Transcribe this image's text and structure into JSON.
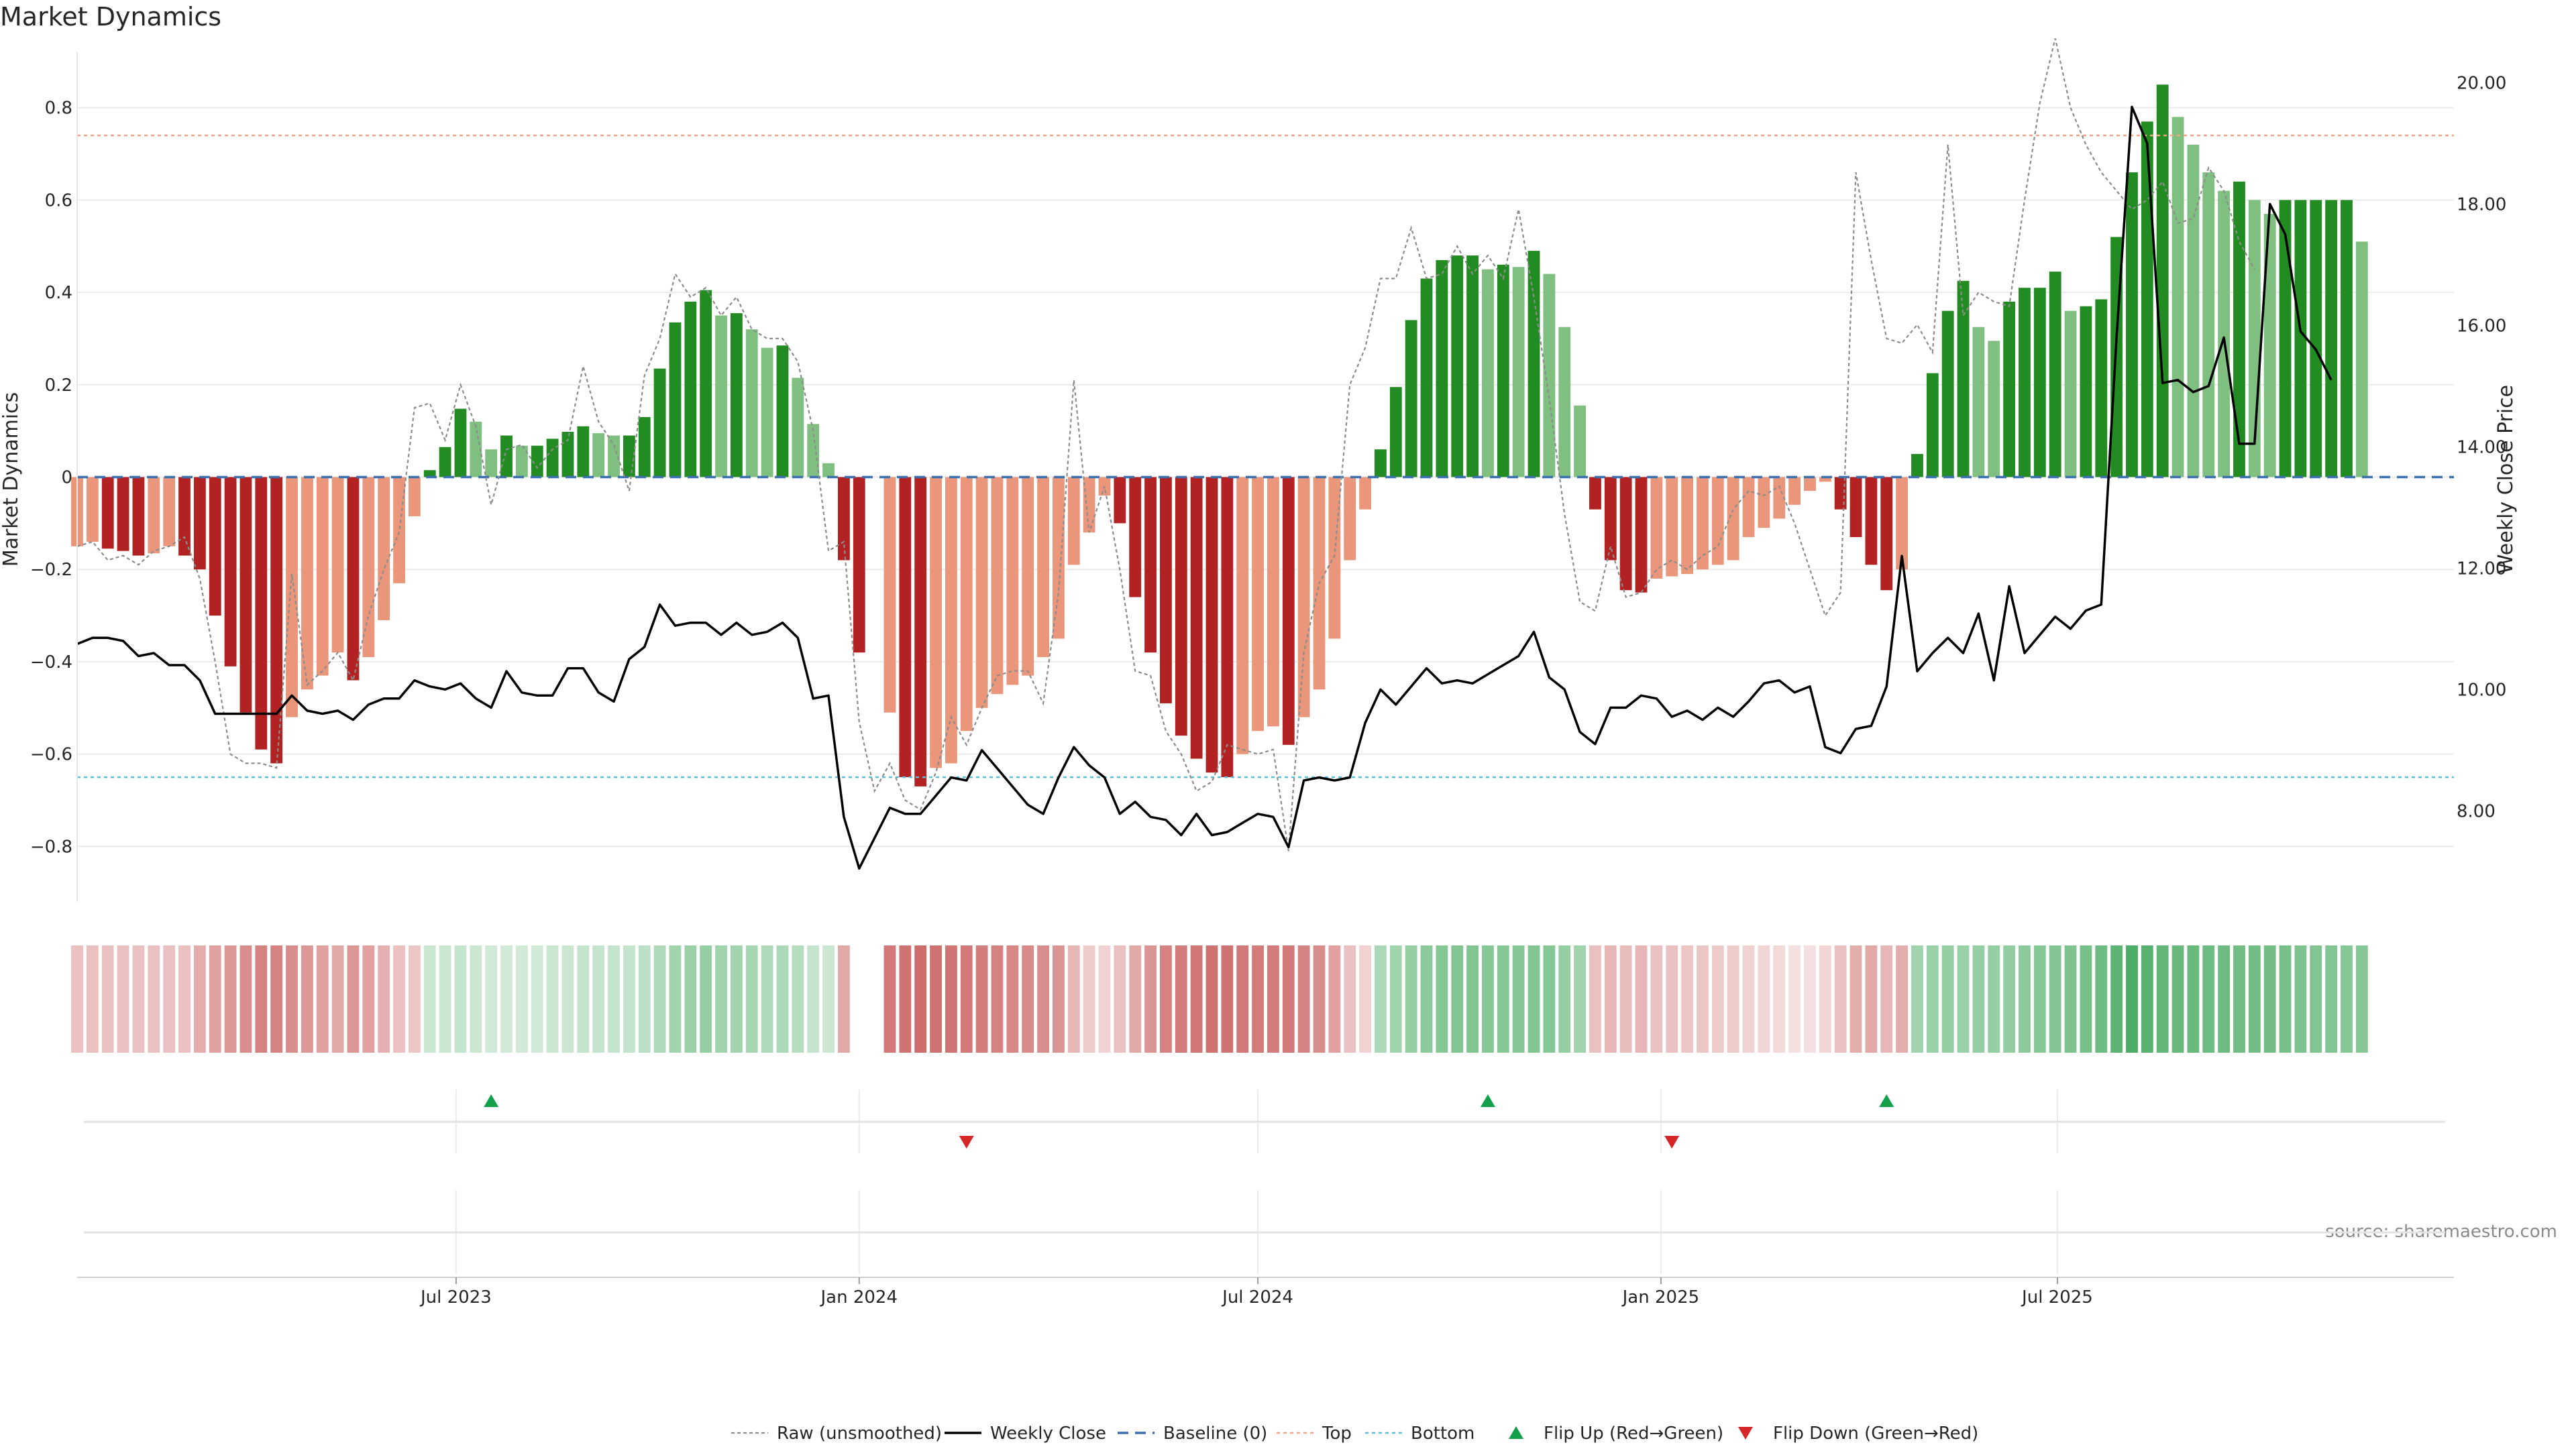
{
  "chart_data": {
    "type": "bar",
    "title": "Market Dynamics",
    "ylabel": "Market Dynamics",
    "y2label": "Weekly Close Price",
    "source": "source: sharemaestro.com",
    "ylim": [
      -0.92,
      0.92
    ],
    "y_ticks": [
      -0.8,
      -0.6,
      -0.4,
      -0.2,
      0,
      0.2,
      0.4,
      0.6,
      0.8
    ],
    "y_tick_labels": [
      "−0.8",
      "−0.6",
      "−0.4",
      "−0.2",
      "0",
      "0.2",
      "0.4",
      "0.6",
      "0.8"
    ],
    "y2lim": [
      6.5,
      20.5
    ],
    "y2_ticks": [
      8,
      10,
      12,
      14,
      16,
      18,
      20
    ],
    "y2_tick_labels": [
      "8.00",
      "10.00",
      "12.00",
      "14.00",
      "16.00",
      "18.00",
      "20.00"
    ],
    "x_start": "2023-01-09",
    "x_end": "2025-12-29",
    "x_ticks": [
      {
        "date": "2023-07-01",
        "label": "Jul 2023"
      },
      {
        "date": "2024-01-01",
        "label": "Jan 2024"
      },
      {
        "date": "2024-07-01",
        "label": "Jul 2024"
      },
      {
        "date": "2025-01-01",
        "label": "Jan 2025"
      },
      {
        "date": "2025-07-01",
        "label": "Jul 2025"
      }
    ],
    "top_level": 0.74,
    "bottom_level": -0.65,
    "baseline": 0,
    "first_week": "2023-01-09",
    "bar_values": [
      -0.15,
      -0.14,
      -0.155,
      -0.16,
      -0.17,
      -0.165,
      -0.15,
      -0.17,
      -0.2,
      -0.3,
      -0.41,
      -0.51,
      -0.59,
      -0.62,
      -0.52,
      -0.46,
      -0.43,
      -0.38,
      -0.44,
      -0.39,
      -0.31,
      -0.23,
      -0.085,
      0.015,
      0.065,
      0.148,
      0.12,
      0.06,
      0.09,
      0.068,
      0.068,
      0.083,
      0.098,
      0.11,
      0.095,
      0.09,
      0.09,
      0.13,
      0.235,
      0.335,
      0.38,
      0.405,
      0.35,
      0.355,
      0.32,
      0.28,
      0.285,
      0.215,
      0.115,
      0.03,
      -0.18,
      -0.38,
      null,
      -0.51,
      -0.65,
      -0.67,
      -0.63,
      -0.62,
      -0.55,
      -0.5,
      -0.47,
      -0.45,
      -0.43,
      -0.39,
      -0.35,
      -0.19,
      -0.12,
      -0.04,
      -0.1,
      -0.26,
      -0.38,
      -0.49,
      -0.56,
      -0.61,
      -0.64,
      -0.65,
      -0.6,
      -0.55,
      -0.54,
      -0.58,
      -0.52,
      -0.46,
      -0.35,
      -0.18,
      -0.07,
      0.06,
      0.195,
      0.34,
      0.43,
      0.47,
      0.48,
      0.48,
      0.45,
      0.46,
      0.455,
      0.49,
      0.44,
      0.325,
      0.155,
      -0.07,
      -0.18,
      -0.245,
      -0.25,
      -0.22,
      -0.215,
      -0.21,
      -0.2,
      -0.19,
      -0.18,
      -0.13,
      -0.11,
      -0.09,
      -0.06,
      -0.03,
      -0.01,
      -0.07,
      -0.13,
      -0.19,
      -0.245,
      -0.2,
      0.05,
      0.225,
      0.36,
      0.425,
      0.325,
      0.295,
      0.38,
      0.41,
      0.41,
      0.445,
      0.36,
      0.37,
      0.385,
      0.52,
      0.66,
      0.77,
      0.85,
      0.78,
      0.72,
      0.66,
      0.62,
      0.64,
      0.6,
      0.57,
      0.6,
      0.6,
      0.6,
      0.6,
      0.6,
      0.51
    ],
    "raw_values": [
      -0.15,
      -0.14,
      -0.18,
      -0.17,
      -0.19,
      -0.16,
      -0.15,
      -0.13,
      -0.22,
      -0.4,
      -0.6,
      -0.62,
      -0.62,
      -0.63,
      -0.21,
      -0.45,
      -0.42,
      -0.38,
      -0.44,
      -0.3,
      -0.2,
      -0.12,
      0.15,
      0.16,
      0.08,
      0.2,
      0.11,
      -0.06,
      0.06,
      0.07,
      0.02,
      0.06,
      0.08,
      0.24,
      0.12,
      0.07,
      -0.03,
      0.22,
      0.3,
      0.44,
      0.39,
      0.41,
      0.35,
      0.39,
      0.32,
      0.3,
      0.3,
      0.25,
      0.1,
      -0.16,
      -0.14,
      -0.53,
      -0.68,
      -0.62,
      -0.7,
      -0.72,
      -0.64,
      -0.52,
      -0.58,
      -0.5,
      -0.43,
      -0.42,
      -0.42,
      -0.49,
      -0.25,
      0.21,
      -0.12,
      -0.02,
      -0.2,
      -0.42,
      -0.43,
      -0.55,
      -0.6,
      -0.68,
      -0.66,
      -0.58,
      -0.59,
      -0.6,
      -0.59,
      -0.81,
      -0.38,
      -0.23,
      -0.17,
      0.2,
      0.28,
      0.43,
      0.43,
      0.54,
      0.43,
      0.44,
      0.5,
      0.44,
      0.48,
      0.43,
      0.58,
      0.39,
      0.17,
      -0.08,
      -0.27,
      -0.29,
      -0.15,
      -0.26,
      -0.25,
      -0.2,
      -0.18,
      -0.2,
      -0.17,
      -0.15,
      -0.07,
      -0.03,
      -0.04,
      -0.02,
      -0.1,
      -0.2,
      -0.3,
      -0.25,
      0.66,
      0.47,
      0.3,
      0.29,
      0.33,
      0.27,
      0.72,
      0.35,
      0.4,
      0.38,
      0.37,
      0.6,
      0.81,
      0.95,
      0.8,
      0.72,
      0.66,
      0.62,
      0.58,
      0.6,
      0.64,
      0.55,
      0.56,
      0.67,
      0.62,
      0.51,
      0.45
    ],
    "price_values": [
      10.75,
      10.85,
      10.85,
      10.8,
      10.55,
      10.6,
      10.4,
      10.4,
      10.15,
      9.6,
      9.6,
      9.6,
      9.6,
      9.6,
      9.9,
      9.65,
      9.6,
      9.65,
      9.5,
      9.75,
      9.85,
      9.85,
      10.15,
      10.05,
      10.0,
      10.1,
      9.85,
      9.7,
      10.3,
      9.95,
      9.9,
      9.9,
      10.35,
      10.35,
      9.95,
      9.8,
      10.5,
      10.7,
      11.4,
      11.05,
      11.1,
      11.1,
      10.9,
      11.1,
      10.9,
      10.95,
      11.1,
      10.85,
      9.85,
      9.9,
      7.9,
      7.05,
      7.55,
      8.05,
      7.95,
      7.95,
      8.25,
      8.55,
      8.5,
      9.0,
      8.7,
      8.4,
      8.1,
      7.95,
      8.55,
      9.05,
      8.75,
      8.55,
      7.95,
      8.15,
      7.9,
      7.85,
      7.6,
      7.95,
      7.6,
      7.65,
      7.8,
      7.95,
      7.9,
      7.4,
      8.5,
      8.55,
      8.5,
      8.55,
      9.45,
      10.0,
      9.75,
      10.05,
      10.35,
      10.1,
      10.15,
      10.1,
      10.25,
      10.4,
      10.55,
      10.95,
      10.2,
      10.0,
      9.3,
      9.1,
      9.7,
      9.7,
      9.9,
      9.85,
      9.55,
      9.65,
      9.5,
      9.7,
      9.55,
      9.8,
      10.1,
      10.15,
      9.95,
      10.05,
      9.05,
      8.95,
      9.35,
      9.4,
      10.05,
      12.2,
      10.3,
      10.6,
      10.85,
      10.6,
      11.25,
      10.15,
      11.7,
      10.6,
      10.9,
      11.2,
      11.0,
      11.3,
      11.4,
      15.8,
      19.6,
      19.0,
      15.05,
      15.1,
      14.9,
      15.0,
      15.8,
      14.05,
      14.05,
      18.0,
      17.5,
      15.9,
      15.6,
      15.1
    ],
    "regime_alphas": [
      0.3,
      0.3,
      0.3,
      0.3,
      0.3,
      0.3,
      0.3,
      0.3,
      0.4,
      0.45,
      0.5,
      0.55,
      0.6,
      0.6,
      0.55,
      0.5,
      0.45,
      0.42,
      0.5,
      0.45,
      0.38,
      0.3,
      0.28,
      0.25,
      0.25,
      0.28,
      0.25,
      0.22,
      0.22,
      0.22,
      0.22,
      0.25,
      0.25,
      0.28,
      0.28,
      0.28,
      0.28,
      0.32,
      0.38,
      0.45,
      0.48,
      0.5,
      0.45,
      0.45,
      0.42,
      0.38,
      0.4,
      0.35,
      0.28,
      0.25,
      0.42,
      null,
      null,
      0.65,
      0.68,
      0.7,
      0.68,
      0.67,
      0.65,
      0.63,
      0.6,
      0.58,
      0.57,
      0.55,
      0.52,
      0.35,
      0.25,
      0.22,
      0.3,
      0.42,
      0.52,
      0.6,
      0.63,
      0.66,
      0.68,
      0.68,
      0.65,
      0.63,
      0.63,
      0.65,
      0.6,
      0.55,
      0.45,
      0.3,
      0.22,
      0.4,
      0.45,
      0.5,
      0.55,
      0.58,
      0.6,
      0.6,
      0.58,
      0.58,
      0.58,
      0.6,
      0.58,
      0.5,
      0.45,
      0.3,
      0.35,
      0.32,
      0.35,
      0.3,
      0.3,
      0.28,
      0.28,
      0.25,
      0.25,
      0.22,
      0.2,
      0.18,
      0.15,
      0.15,
      0.2,
      0.3,
      0.4,
      0.42,
      0.35,
      0.4,
      0.45,
      0.48,
      0.5,
      0.48,
      0.5,
      0.5,
      0.52,
      0.55,
      0.58,
      0.6,
      0.62,
      0.65,
      0.7,
      0.78,
      0.85,
      0.8,
      0.75,
      0.72,
      0.72,
      0.7,
      0.7,
      0.68,
      0.68,
      0.68,
      0.65,
      0.62,
      0.6,
      0.6,
      0.58,
      0.58
    ],
    "flips_up": [
      "2023-07-17",
      "2024-10-14",
      "2025-04-14"
    ],
    "flips_down": [
      "2024-02-19",
      "2025-01-06"
    ],
    "colors": {
      "green_strong": "#228B22",
      "green_light": "#7FBF7F",
      "red_strong": "#B22222",
      "red_light": "#E9967A",
      "regime_green": "#2E9E4A",
      "regime_red": "#B8312F",
      "top_line": "#F4A582",
      "bottom_line": "#5BC0DE",
      "baseline": "#3A6FB0",
      "raw": "#8C8C8C",
      "close": "#000000",
      "flip_up": "#14A04A",
      "flip_down": "#D62728"
    },
    "legend": [
      {
        "key": "raw",
        "label": "Raw (unsmoothed)"
      },
      {
        "key": "close",
        "label": "Weekly Close"
      },
      {
        "key": "baseline",
        "label": "Baseline (0)"
      },
      {
        "key": "top",
        "label": "Top"
      },
      {
        "key": "bottom",
        "label": "Bottom"
      },
      {
        "key": "flip_up",
        "label": "Flip Up (Red→Green)"
      },
      {
        "key": "flip_down",
        "label": "Flip Down (Green→Red)"
      }
    ],
    "legend_position": "bottom-center"
  }
}
